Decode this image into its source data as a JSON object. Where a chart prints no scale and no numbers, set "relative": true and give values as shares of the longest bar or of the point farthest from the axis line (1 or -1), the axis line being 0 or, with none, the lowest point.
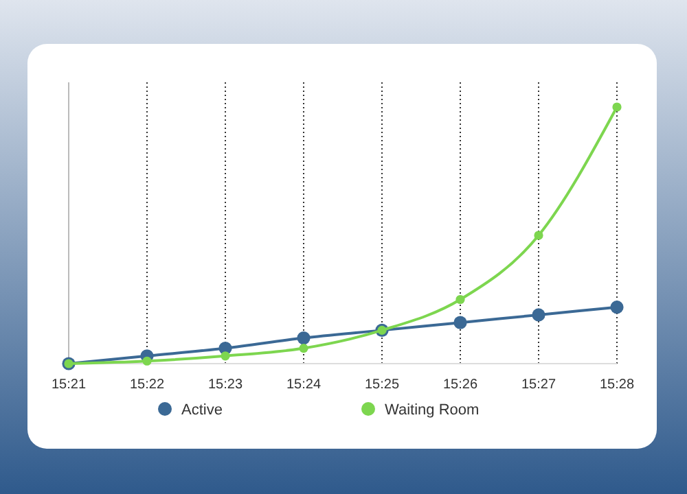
{
  "chart_data": {
    "type": "line",
    "relative": true,
    "categories": [
      "15:21",
      "15:22",
      "15:23",
      "15:24",
      "15:25",
      "15:26",
      "15:27",
      "15:28"
    ],
    "series": [
      {
        "name": "Active",
        "color": "#3b6995",
        "values": [
          0,
          0.03,
          0.06,
          0.1,
          0.13,
          0.16,
          0.19,
          0.22
        ]
      },
      {
        "name": "Waiting Room",
        "color": "#7dd64f",
        "values": [
          0,
          0.01,
          0.03,
          0.06,
          0.13,
          0.25,
          0.5,
          1
        ]
      }
    ],
    "grid": "x",
    "marker": "circle",
    "line_style": "solid",
    "legend": "bottom"
  }
}
